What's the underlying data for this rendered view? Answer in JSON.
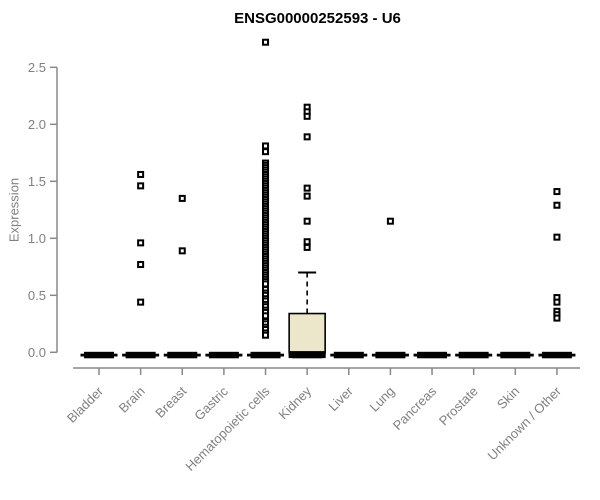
{
  "chart_data": {
    "type": "boxplot",
    "title": "ENSG00000252593 - U6",
    "xlabel": "",
    "ylabel": "Expression",
    "ylim": [
      0.0,
      2.5
    ],
    "yticks": [
      "0.0",
      "0.5",
      "1.0",
      "1.5",
      "2.0",
      "2.5"
    ],
    "grid": false,
    "legend": false,
    "categories": [
      "Bladder",
      "Brain",
      "Breast",
      "Gastric",
      "Hematopoietic cells",
      "Kidney",
      "Liver",
      "Lung",
      "Pancreas",
      "Prostate",
      "Skin",
      "Unknown / Other"
    ],
    "series": [
      {
        "category": "Bladder",
        "zero_bar": true,
        "points": []
      },
      {
        "category": "Brain",
        "zero_bar": true,
        "points": [
          1.56,
          1.46,
          0.96,
          0.77,
          0.44
        ]
      },
      {
        "category": "Breast",
        "zero_bar": true,
        "points": [
          1.35,
          0.89
        ]
      },
      {
        "category": "Gastric",
        "zero_bar": true,
        "points": []
      },
      {
        "category": "Hematopoietic cells",
        "zero_bar": true,
        "points": [
          2.72,
          1.81,
          1.76,
          1.66,
          1.64,
          1.62,
          1.6,
          1.58,
          1.56,
          1.54,
          1.52,
          1.5,
          1.48,
          1.46,
          1.44,
          1.42,
          1.4,
          1.38,
          1.36,
          1.34,
          1.32,
          1.3,
          1.28,
          1.26,
          1.24,
          1.22,
          1.2,
          1.18,
          1.16,
          1.14,
          1.12,
          1.1,
          1.08,
          1.06,
          1.04,
          1.02,
          1.0,
          0.98,
          0.96,
          0.94,
          0.92,
          0.9,
          0.88,
          0.86,
          0.84,
          0.82,
          0.8,
          0.78,
          0.76,
          0.74,
          0.72,
          0.7,
          0.68,
          0.66,
          0.64,
          0.62,
          0.6,
          0.55,
          0.52,
          0.5,
          0.47,
          0.45,
          0.42,
          0.4,
          0.37,
          0.35,
          0.32,
          0.27,
          0.25,
          0.22,
          0.2,
          0.17,
          0.15
        ]
      },
      {
        "category": "Kidney",
        "zero_bar": true,
        "points": [
          2.15,
          2.11,
          2.07,
          1.89,
          1.44,
          1.37,
          1.15,
          0.97,
          0.92
        ],
        "box": {
          "median": 0.0,
          "q1": 0.0,
          "q3": 0.34,
          "whisker_low": 0.0,
          "whisker_high": 0.7
        }
      },
      {
        "category": "Liver",
        "zero_bar": true,
        "points": []
      },
      {
        "category": "Lung",
        "zero_bar": true,
        "points": [
          1.15
        ]
      },
      {
        "category": "Pancreas",
        "zero_bar": true,
        "points": []
      },
      {
        "category": "Prostate",
        "zero_bar": true,
        "points": []
      },
      {
        "category": "Skin",
        "zero_bar": true,
        "points": []
      },
      {
        "category": "Unknown / Other",
        "zero_bar": true,
        "points": [
          1.41,
          1.29,
          1.01,
          0.48,
          0.44,
          0.36,
          0.33,
          0.3
        ]
      }
    ],
    "colors": {
      "box_fill": "#ECE7CB",
      "box_stroke": "#000000",
      "point": "#000000",
      "point_center": "#ffffff",
      "zero_bar": "#000000",
      "axis": "#888888",
      "tick_label": "#808080",
      "title": "#000000"
    }
  }
}
